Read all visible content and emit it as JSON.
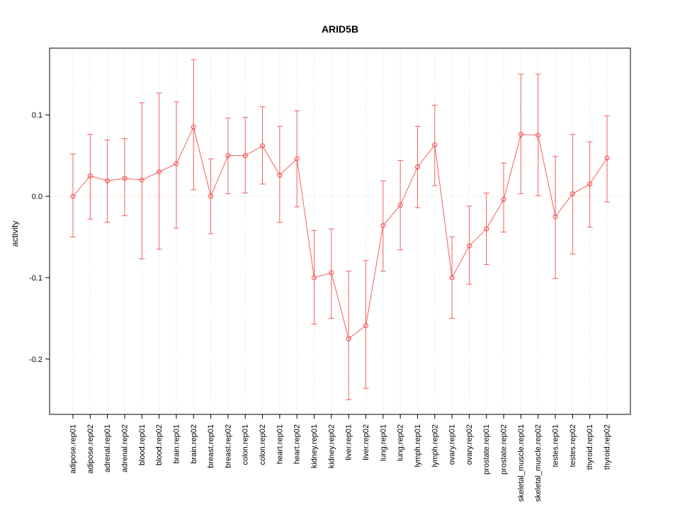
{
  "chart_data": {
    "type": "line",
    "title": "ARID5B",
    "ylabel": "activity",
    "xlabel": "",
    "ylim": [
      -0.268,
      0.182
    ],
    "yticks": [
      0.1,
      0.0,
      -0.1,
      -0.2
    ],
    "grid": true,
    "legend": "none",
    "categories": [
      "adipose.rep01",
      "adipose.rep02",
      "adrenal.rep01",
      "adrenal.rep02",
      "blood.rep01",
      "blood.rep02",
      "brain.rep01",
      "brain.rep02",
      "breast.rep01",
      "breast.rep02",
      "colon.rep01",
      "colon.rep02",
      "heart.rep01",
      "heart.rep02",
      "kidney.rep01",
      "kidney.rep02",
      "liver.rep01",
      "liver.rep02",
      "lung.rep01",
      "lung.rep02",
      "lymph.rep01",
      "lymph.rep02",
      "ovary.rep01",
      "ovary.rep02",
      "prostate.rep01",
      "prostate.rep02",
      "skeletal_muscle.rep01",
      "skeletal_muscle.rep02",
      "testes.rep01",
      "testes.rep02",
      "thyroid.rep01",
      "thyroid.rep02"
    ],
    "series": [
      {
        "name": "activity",
        "values": [
          0.0,
          0.025,
          0.019,
          0.022,
          0.02,
          0.03,
          0.04,
          0.085,
          0.0,
          0.05,
          0.05,
          0.062,
          0.026,
          0.046,
          -0.1,
          -0.094,
          -0.175,
          -0.159,
          -0.036,
          -0.011,
          0.036,
          0.063,
          -0.1,
          -0.061,
          -0.04,
          -0.004,
          0.076,
          0.075,
          -0.025,
          0.003,
          0.015,
          0.047
        ],
        "upper": [
          0.052,
          0.076,
          0.069,
          0.071,
          0.115,
          0.127,
          0.116,
          0.168,
          0.046,
          0.096,
          0.097,
          0.11,
          0.086,
          0.105,
          -0.042,
          -0.04,
          -0.092,
          -0.079,
          0.019,
          0.044,
          0.086,
          0.112,
          -0.05,
          -0.012,
          0.004,
          0.041,
          0.15,
          0.15,
          0.049,
          0.076,
          0.067,
          0.099
        ],
        "lower": [
          -0.05,
          -0.028,
          -0.032,
          -0.024,
          -0.077,
          -0.065,
          -0.039,
          0.008,
          -0.046,
          0.003,
          0.004,
          0.015,
          -0.032,
          -0.013,
          -0.157,
          -0.15,
          -0.25,
          -0.236,
          -0.092,
          -0.066,
          -0.014,
          0.013,
          -0.15,
          -0.108,
          -0.084,
          -0.044,
          0.003,
          0.001,
          -0.101,
          -0.071,
          -0.038,
          -0.007
        ]
      }
    ],
    "colors": {
      "series": "#f25f5f",
      "grid": "#d8d8d8",
      "zero_line": "#f3c6c6",
      "axis": "#000000",
      "background": "#ffffff"
    }
  }
}
